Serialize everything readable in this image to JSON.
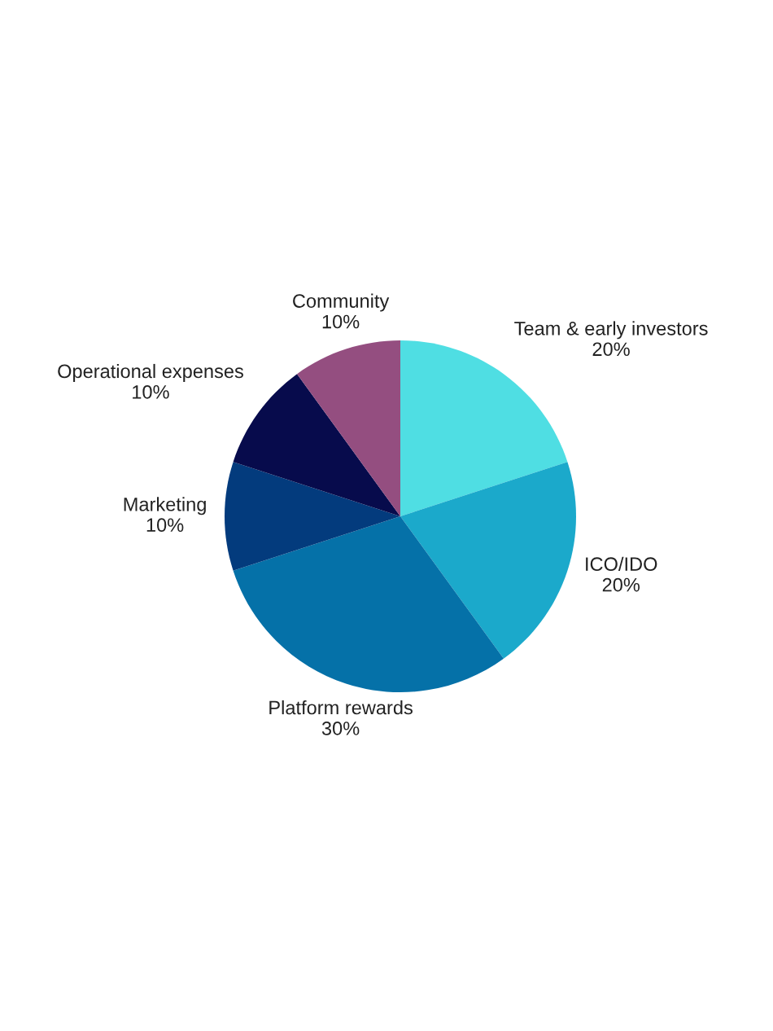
{
  "chart_data": {
    "type": "pie",
    "categories": [
      "Team & early investors",
      "ICO/IDO",
      "Platform rewards",
      "Marketing",
      "Operational expenses",
      "Community"
    ],
    "values": [
      20,
      20,
      30,
      10,
      10,
      10
    ],
    "value_labels": [
      "20%",
      "20%",
      "30%",
      "10%",
      "10%",
      "10%"
    ],
    "colors": [
      "#4fdee3",
      "#1ba9cb",
      "#0571a8",
      "#033b7d",
      "#070b4c",
      "#944e80"
    ]
  }
}
